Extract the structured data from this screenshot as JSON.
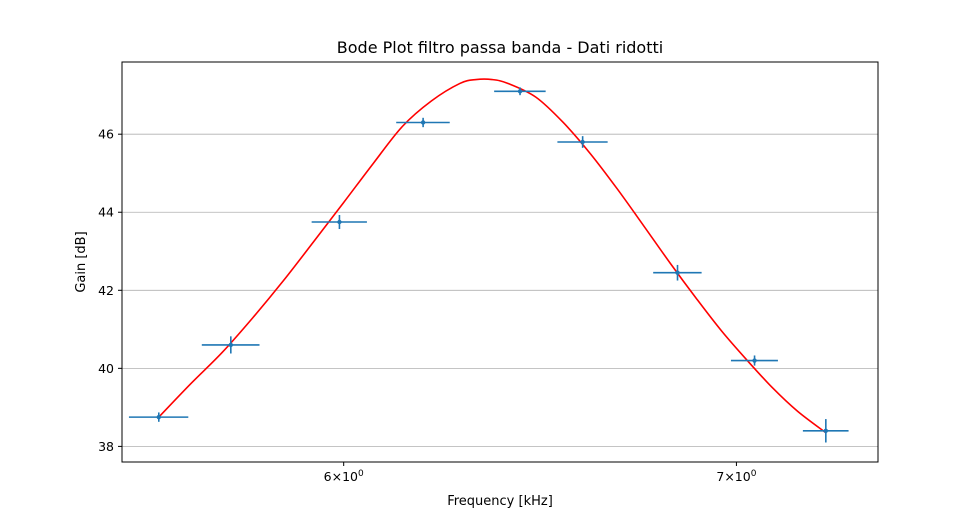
{
  "chart_data": {
    "type": "scatter",
    "title": "Bode Plot filtro passa banda - Dati ridotti",
    "xlabel": "Frequency [kHz]",
    "ylabel": "Gain [dB]",
    "xscale": "log",
    "xlim": [
      5.5,
      7.4
    ],
    "ylim": [
      37.6,
      47.85
    ],
    "grid": "y-major",
    "xticks": [
      {
        "value": 6,
        "base": "6×10",
        "exp": "0"
      },
      {
        "value": 7,
        "base": "7×10",
        "exp": "0"
      }
    ],
    "yticks": [
      38,
      40,
      42,
      44,
      46
    ],
    "colors": {
      "data": "#1f77b4",
      "fit": "#ff0000"
    },
    "series": [
      {
        "kind": "errorbar",
        "x": [
          5.58,
          5.74,
          5.99,
          6.19,
          6.43,
          6.59,
          6.84,
          7.05,
          7.25
        ],
        "y": [
          38.75,
          40.6,
          43.75,
          46.3,
          47.1,
          45.8,
          42.45,
          40.2,
          38.4
        ],
        "xerr": [
          0.065,
          0.065,
          0.065,
          0.065,
          0.065,
          0.065,
          0.065,
          0.065,
          0.065
        ],
        "yerr": [
          0.12,
          0.22,
          0.18,
          0.12,
          0.1,
          0.15,
          0.2,
          0.13,
          0.3
        ]
      },
      {
        "kind": "fit",
        "x": [
          5.58,
          5.65,
          5.72,
          5.79,
          5.86,
          5.93,
          6.0,
          6.07,
          6.14,
          6.21,
          6.28,
          6.32,
          6.36,
          6.4,
          6.47,
          6.54,
          6.61,
          6.68,
          6.75,
          6.82,
          6.89,
          6.96,
          7.03,
          7.1,
          7.17,
          7.25
        ],
        "y": [
          38.75,
          39.6,
          40.4,
          41.3,
          42.25,
          43.25,
          44.25,
          45.25,
          46.2,
          46.85,
          47.3,
          47.4,
          47.4,
          47.3,
          46.95,
          46.3,
          45.5,
          44.6,
          43.65,
          42.7,
          41.8,
          40.95,
          40.2,
          39.5,
          38.9,
          38.35
        ]
      }
    ]
  }
}
